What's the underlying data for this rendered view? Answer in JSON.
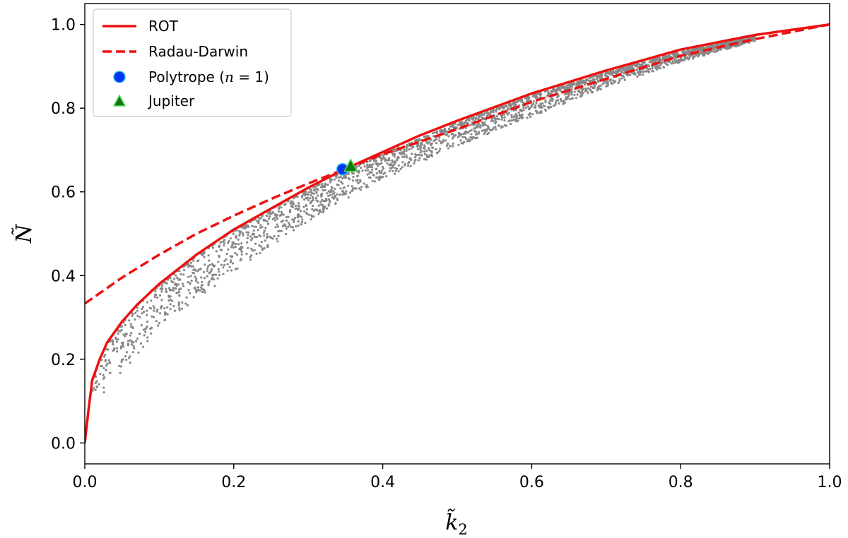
{
  "chart_data": {
    "type": "scatter",
    "xlabel": "k̃",
    "xlabel_sub": "2",
    "ylabel": "Ñ",
    "xlim": [
      0.0,
      1.0
    ],
    "ylim": [
      -0.05,
      1.05
    ],
    "xticks": [
      0.0,
      0.2,
      0.4,
      0.6,
      0.8,
      1.0
    ],
    "xtick_labels": [
      "0.0",
      "0.2",
      "0.4",
      "0.6",
      "0.8",
      "1.0"
    ],
    "yticks": [
      0.0,
      0.2,
      0.4,
      0.6,
      0.8,
      1.0
    ],
    "ytick_labels": [
      "0.0",
      "0.2",
      "0.4",
      "0.6",
      "0.8",
      "1.0"
    ],
    "grid": false,
    "legend_position": "top-left",
    "series": [
      {
        "name": "ROT",
        "kind": "line",
        "style": "solid",
        "color": "#ee1111",
        "x": [
          0.0,
          0.005,
          0.01,
          0.02,
          0.03,
          0.05,
          0.07,
          0.1,
          0.15,
          0.2,
          0.25,
          0.3,
          0.35,
          0.4,
          0.45,
          0.5,
          0.6,
          0.7,
          0.8,
          0.9,
          1.0
        ],
        "y": [
          0.0,
          0.08,
          0.15,
          0.2,
          0.24,
          0.29,
          0.33,
          0.38,
          0.45,
          0.51,
          0.56,
          0.61,
          0.655,
          0.695,
          0.735,
          0.77,
          0.835,
          0.89,
          0.94,
          0.975,
          1.0
        ]
      },
      {
        "name": "Radau-Darwin",
        "kind": "line",
        "style": "dashed",
        "color": "#ee1111",
        "x": [
          0.0,
          0.05,
          0.1,
          0.15,
          0.2,
          0.25,
          0.3,
          0.35,
          0.4,
          0.5,
          0.6,
          0.7,
          0.8,
          0.9,
          1.0
        ],
        "y": [
          0.333,
          0.395,
          0.45,
          0.5,
          0.543,
          0.583,
          0.62,
          0.655,
          0.69,
          0.75,
          0.815,
          0.87,
          0.925,
          0.965,
          1.0
        ]
      },
      {
        "name": "Polytrope (n = 1)",
        "kind": "marker",
        "marker": "circle",
        "color": "#0033ee",
        "edge_color": "#33bbee",
        "x": [
          0.346
        ],
        "y": [
          0.654
        ]
      },
      {
        "name": "Jupiter",
        "kind": "marker",
        "marker": "triangle",
        "color": "#117711",
        "edge_color": "#55dd55",
        "x": [
          0.357
        ],
        "y": [
          0.661
        ]
      },
      {
        "kind": "scatter-cloud",
        "color": "#888888",
        "x": [
          0.01,
          0.02,
          0.03,
          0.05,
          0.08,
          0.1,
          0.15,
          0.2,
          0.25,
          0.3,
          0.35,
          0.4,
          0.5,
          0.6,
          0.7,
          0.8,
          0.9
        ],
        "y_upper": [
          0.14,
          0.2,
          0.24,
          0.29,
          0.35,
          0.38,
          0.45,
          0.51,
          0.56,
          0.605,
          0.65,
          0.69,
          0.765,
          0.83,
          0.885,
          0.935,
          0.97
        ],
        "y_lower": [
          0.08,
          0.1,
          0.12,
          0.17,
          0.23,
          0.28,
          0.34,
          0.41,
          0.47,
          0.53,
          0.58,
          0.63,
          0.71,
          0.78,
          0.85,
          0.91,
          0.96
        ]
      }
    ]
  },
  "legend": [
    {
      "label": "ROT",
      "icon": "solid-line-icon"
    },
    {
      "label": "Radau-Darwin",
      "icon": "dashed-line-icon"
    },
    {
      "label_main": "Polytrope (",
      "label_var": "n",
      "label_rest": " = 1)",
      "icon": "circle-marker-icon"
    },
    {
      "label": "Jupiter",
      "icon": "triangle-marker-icon"
    }
  ]
}
